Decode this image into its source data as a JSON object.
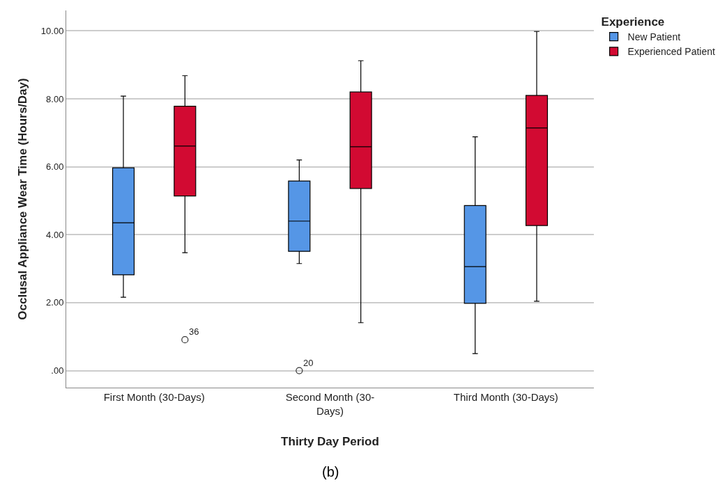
{
  "chart_data": {
    "type": "box",
    "xlabel": "Thirty Day Period",
    "ylabel": "Occlusal Appliance Wear Time (Hours/Day)",
    "legend_title": "Experience",
    "categories": [
      "First Month (30-Days)",
      "Second Month (30-Days)",
      "Third Month (30-Days)"
    ],
    "series": [
      {
        "name": "New Patient",
        "color": "#5596e6",
        "boxes": [
          {
            "low": 2.16,
            "q1": 2.82,
            "median": 4.35,
            "q3": 5.97,
            "high": 8.08
          },
          {
            "low": 3.15,
            "q1": 3.51,
            "median": 4.4,
            "q3": 5.58,
            "high": 6.2,
            "outliers": [
              0.0
            ]
          },
          {
            "low": 0.5,
            "q1": 1.98,
            "median": 3.06,
            "q3": 4.86,
            "high": 6.88
          }
        ]
      },
      {
        "name": "Experienced Patient",
        "color": "#d20a32",
        "boxes": [
          {
            "low": 3.47,
            "q1": 5.14,
            "median": 6.61,
            "q3": 7.78,
            "high": 8.68,
            "outliers": [
              0.91
            ]
          },
          {
            "low": 1.41,
            "q1": 5.36,
            "median": 6.59,
            "q3": 8.2,
            "high": 9.12
          },
          {
            "low": 2.04,
            "q1": 4.27,
            "median": 7.14,
            "q3": 8.1,
            "high": 9.98
          }
        ]
      }
    ],
    "ylim": [
      -0.5,
      10.6
    ],
    "yticks": [
      {
        "value": 0,
        "label": ".00"
      },
      {
        "value": 2,
        "label": "2.00"
      },
      {
        "value": 4,
        "label": "4.00"
      },
      {
        "value": 6,
        "label": "6.00"
      },
      {
        "value": 8,
        "label": "8.00"
      },
      {
        "value": 10,
        "label": "10.00"
      }
    ],
    "annotations": [
      "36",
      "20",
      "(b)"
    ],
    "grid": "y",
    "legend": "top right"
  }
}
